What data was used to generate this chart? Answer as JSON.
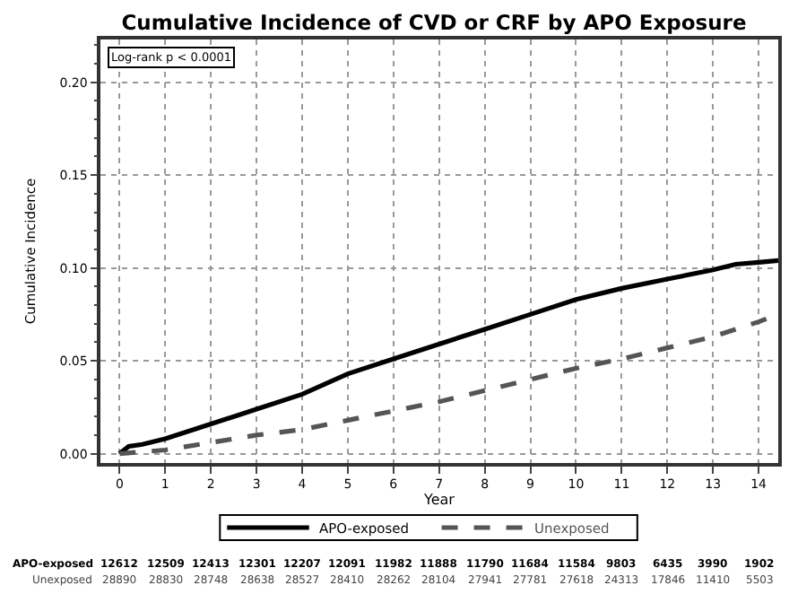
{
  "chart_data": {
    "type": "line",
    "title": "Cumulative Incidence of CVD or CRF by APO Exposure",
    "xlabel": "Year",
    "ylabel": "Cumulative Incidence",
    "x": [
      0,
      0.2,
      0.5,
      1,
      2,
      3,
      4,
      5,
      6,
      7,
      8,
      9,
      10,
      11,
      12,
      13,
      13.5,
      14,
      14.43
    ],
    "series": [
      {
        "name": "APO-exposed",
        "color": "#000000",
        "line_style": "solid",
        "values": [
          0,
          0.004,
          0.005,
          0.008,
          0.016,
          0.024,
          0.032,
          0.043,
          0.051,
          0.059,
          0.067,
          0.075,
          0.083,
          0.089,
          0.094,
          0.099,
          0.102,
          0.103,
          0.104
        ]
      },
      {
        "name": "Unexposed",
        "color": "#555555",
        "line_style": "dashed",
        "x": [
          0,
          1,
          2,
          3,
          4,
          5,
          6,
          7,
          8,
          9,
          10,
          11,
          12,
          13,
          14,
          14.43
        ],
        "values": [
          0,
          0.002,
          0.006,
          0.01,
          0.013,
          0.018,
          0.023,
          0.028,
          0.034,
          0.04,
          0.046,
          0.051,
          0.057,
          0.063,
          0.071,
          0.075
        ]
      }
    ],
    "xlim": [
      -0.42,
      14.43
    ],
    "xticks": [
      0,
      1,
      2,
      3,
      4,
      5,
      6,
      7,
      8,
      9,
      10,
      11,
      12,
      13,
      14
    ],
    "ylim": [
      -0.005,
      0.223
    ],
    "yticks": [
      {
        "value": 0,
        "label": "0.00"
      },
      {
        "value": 0.05,
        "label": "0.05"
      },
      {
        "value": 0.1,
        "label": "0.10"
      },
      {
        "value": 0.15,
        "label": "0.15"
      },
      {
        "value": 0.2,
        "label": "0.20"
      }
    ],
    "grid": true,
    "legend": "bottom",
    "marker": "none",
    "annotations": [
      "Log-rank p < 0.0001",
      "APO-exposed 12612 12509 12413 12301 12207 12091 11982 11888 11790 11684 11584 9803 6435 3990 1902",
      "Unexposed 28890 28830 28748 28638 28527 28410 28262 28104 27941 27781 27618 24313 17846 11410 5503"
    ]
  }
}
